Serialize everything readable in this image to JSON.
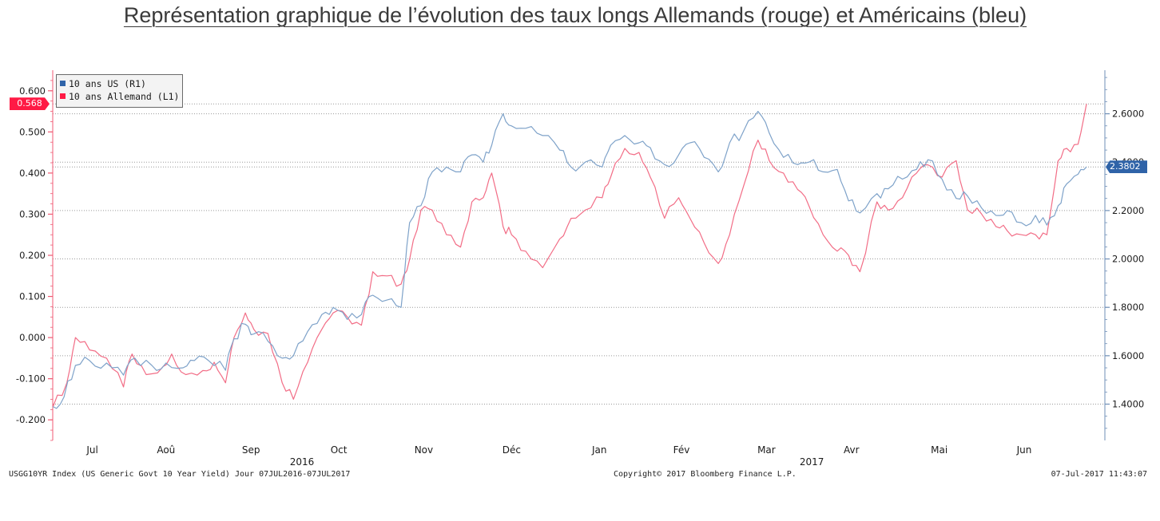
{
  "title": "Représentation graphique de l’évolution des taux longs Allemands (rouge) et Américains (bleu)",
  "colors": {
    "us": "#2f63a8",
    "de": "#ff1a45",
    "us_line": "#7ea2c9",
    "de_line": "#f26d86",
    "axis_left": "#f05a73",
    "axis_right": "#6f8fb7",
    "grid": "#9a9a9a"
  },
  "legend": {
    "us_label": "10 ans US (R1)",
    "de_label": "10 ans Allemand (L1)"
  },
  "badges": {
    "de_last": "0.568",
    "us_last": "2.3802"
  },
  "footer": {
    "left": "USGG10YR Index (US Generic Govt 10 Year Yield) Jour 07JUL2016-07JUL2017",
    "center": "Copyright© 2017 Bloomberg Finance L.P.",
    "right": "07-Jul-2017 11:43:07"
  },
  "chart_data": {
    "type": "line",
    "title": "Représentation graphique de l’évolution des taux longs Allemands (rouge) et Américains (bleu)",
    "x_start": "2016-07-07",
    "x_end": "2017-07-07",
    "x_months": [
      "Jul",
      "Aoû",
      "Sep",
      "Oct",
      "Nov",
      "Déc",
      "Jan",
      "Fév",
      "Mar",
      "Avr",
      "Mai",
      "Jun"
    ],
    "x_years": [
      "2016",
      "2017"
    ],
    "y_left": {
      "label": "10 ans Allemand (L1)",
      "range": [
        -0.25,
        0.65
      ],
      "ticks": [
        "0.600",
        "0.500",
        "0.400",
        "0.300",
        "0.200",
        "0.100",
        "0.000",
        "-0.100",
        "-0.200"
      ]
    },
    "y_right": {
      "label": "10 ans US (R1)",
      "range": [
        1.25,
        2.78
      ],
      "ticks": [
        "2.6000",
        "2.4000",
        "2.2000",
        "2.0000",
        "1.8000",
        "1.6000",
        "1.4000"
      ]
    },
    "grid": "horizontal dotted",
    "legend_position": "top-left",
    "series": [
      {
        "name": "10 ans Allemand (L1)",
        "axis": "left",
        "color": "#f26d86",
        "points": [
          [
            "2016-07-07",
            -0.17
          ],
          [
            "2016-07-12",
            -0.11
          ],
          [
            "2016-07-15",
            0.0
          ],
          [
            "2016-07-20",
            -0.03
          ],
          [
            "2016-07-26",
            -0.05
          ],
          [
            "2016-08-01",
            -0.12
          ],
          [
            "2016-08-04",
            -0.04
          ],
          [
            "2016-08-09",
            -0.09
          ],
          [
            "2016-08-15",
            -0.07
          ],
          [
            "2016-08-18",
            -0.04
          ],
          [
            "2016-08-23",
            -0.09
          ],
          [
            "2016-08-29",
            -0.08
          ],
          [
            "2016-09-02",
            -0.06
          ],
          [
            "2016-09-06",
            -0.11
          ],
          [
            "2016-09-09",
            0.0
          ],
          [
            "2016-09-13",
            0.06
          ],
          [
            "2016-09-16",
            0.02
          ],
          [
            "2016-09-21",
            0.01
          ],
          [
            "2016-09-26",
            -0.11
          ],
          [
            "2016-09-30",
            -0.15
          ],
          [
            "2016-10-05",
            -0.06
          ],
          [
            "2016-10-10",
            0.02
          ],
          [
            "2016-10-14",
            0.06
          ],
          [
            "2016-10-19",
            0.05
          ],
          [
            "2016-10-24",
            0.03
          ],
          [
            "2016-10-28",
            0.16
          ],
          [
            "2016-11-02",
            0.15
          ],
          [
            "2016-11-07",
            0.13
          ],
          [
            "2016-11-10",
            0.19
          ],
          [
            "2016-11-14",
            0.31
          ],
          [
            "2016-11-18",
            0.31
          ],
          [
            "2016-11-23",
            0.25
          ],
          [
            "2016-11-28",
            0.22
          ],
          [
            "2016-12-02",
            0.33
          ],
          [
            "2016-12-06",
            0.34
          ],
          [
            "2016-12-09",
            0.4
          ],
          [
            "2016-12-13",
            0.27
          ],
          [
            "2016-12-16",
            0.25
          ],
          [
            "2016-12-21",
            0.21
          ],
          [
            "2016-12-27",
            0.17
          ],
          [
            "2017-01-02",
            0.24
          ],
          [
            "2017-01-06",
            0.29
          ],
          [
            "2017-01-11",
            0.31
          ],
          [
            "2017-01-17",
            0.34
          ],
          [
            "2017-01-20",
            0.39
          ],
          [
            "2017-01-25",
            0.46
          ],
          [
            "2017-01-30",
            0.45
          ],
          [
            "2017-02-03",
            0.39
          ],
          [
            "2017-02-08",
            0.29
          ],
          [
            "2017-02-13",
            0.34
          ],
          [
            "2017-02-17",
            0.29
          ],
          [
            "2017-02-22",
            0.23
          ],
          [
            "2017-02-27",
            0.18
          ],
          [
            "2017-03-03",
            0.25
          ],
          [
            "2017-03-08",
            0.37
          ],
          [
            "2017-03-13",
            0.48
          ],
          [
            "2017-03-17",
            0.43
          ],
          [
            "2017-03-22",
            0.4
          ],
          [
            "2017-03-27",
            0.36
          ],
          [
            "2017-03-31",
            0.32
          ],
          [
            "2017-04-05",
            0.25
          ],
          [
            "2017-04-10",
            0.21
          ],
          [
            "2017-04-14",
            0.2
          ],
          [
            "2017-04-18",
            0.16
          ],
          [
            "2017-04-24",
            0.33
          ],
          [
            "2017-04-28",
            0.31
          ],
          [
            "2017-05-03",
            0.34
          ],
          [
            "2017-05-08",
            0.4
          ],
          [
            "2017-05-12",
            0.42
          ],
          [
            "2017-05-17",
            0.39
          ],
          [
            "2017-05-22",
            0.43
          ],
          [
            "2017-05-26",
            0.31
          ],
          [
            "2017-05-31",
            0.3
          ],
          [
            "2017-06-05",
            0.27
          ],
          [
            "2017-06-09",
            0.26
          ],
          [
            "2017-06-14",
            0.25
          ],
          [
            "2017-06-19",
            0.25
          ],
          [
            "2017-06-23",
            0.25
          ],
          [
            "2017-06-27",
            0.43
          ],
          [
            "2017-06-30",
            0.46
          ],
          [
            "2017-07-04",
            0.47
          ],
          [
            "2017-07-07",
            0.568
          ]
        ]
      },
      {
        "name": "10 ans US (R1)",
        "axis": "right",
        "color": "#7ea2c9",
        "points": [
          [
            "2016-07-07",
            1.39
          ],
          [
            "2016-07-11",
            1.43
          ],
          [
            "2016-07-15",
            1.56
          ],
          [
            "2016-07-20",
            1.58
          ],
          [
            "2016-07-26",
            1.57
          ],
          [
            "2016-08-01",
            1.52
          ],
          [
            "2016-08-05",
            1.59
          ],
          [
            "2016-08-11",
            1.56
          ],
          [
            "2016-08-16",
            1.57
          ],
          [
            "2016-08-22",
            1.55
          ],
          [
            "2016-08-26",
            1.58
          ],
          [
            "2016-08-31",
            1.58
          ],
          [
            "2016-09-06",
            1.54
          ],
          [
            "2016-09-09",
            1.67
          ],
          [
            "2016-09-13",
            1.73
          ],
          [
            "2016-09-16",
            1.69
          ],
          [
            "2016-09-21",
            1.66
          ],
          [
            "2016-09-26",
            1.59
          ],
          [
            "2016-09-30",
            1.6
          ],
          [
            "2016-10-05",
            1.7
          ],
          [
            "2016-10-10",
            1.77
          ],
          [
            "2016-10-14",
            1.8
          ],
          [
            "2016-10-19",
            1.75
          ],
          [
            "2016-10-24",
            1.77
          ],
          [
            "2016-10-28",
            1.85
          ],
          [
            "2016-11-02",
            1.83
          ],
          [
            "2016-11-07",
            1.8
          ],
          [
            "2016-11-10",
            2.15
          ],
          [
            "2016-11-14",
            2.22
          ],
          [
            "2016-11-18",
            2.36
          ],
          [
            "2016-11-23",
            2.38
          ],
          [
            "2016-11-28",
            2.36
          ],
          [
            "2016-12-02",
            2.43
          ],
          [
            "2016-12-06",
            2.4
          ],
          [
            "2016-12-09",
            2.47
          ],
          [
            "2016-12-13",
            2.6
          ],
          [
            "2016-12-16",
            2.55
          ],
          [
            "2016-12-21",
            2.54
          ],
          [
            "2016-12-27",
            2.51
          ],
          [
            "2017-01-02",
            2.45
          ],
          [
            "2017-01-06",
            2.38
          ],
          [
            "2017-01-11",
            2.4
          ],
          [
            "2017-01-17",
            2.38
          ],
          [
            "2017-01-20",
            2.47
          ],
          [
            "2017-01-25",
            2.51
          ],
          [
            "2017-01-30",
            2.48
          ],
          [
            "2017-02-03",
            2.46
          ],
          [
            "2017-02-08",
            2.39
          ],
          [
            "2017-02-13",
            2.43
          ],
          [
            "2017-02-17",
            2.48
          ],
          [
            "2017-02-22",
            2.42
          ],
          [
            "2017-02-27",
            2.36
          ],
          [
            "2017-03-03",
            2.48
          ],
          [
            "2017-03-08",
            2.53
          ],
          [
            "2017-03-13",
            2.61
          ],
          [
            "2017-03-17",
            2.52
          ],
          [
            "2017-03-22",
            2.42
          ],
          [
            "2017-03-27",
            2.39
          ],
          [
            "2017-03-31",
            2.4
          ],
          [
            "2017-04-05",
            2.36
          ],
          [
            "2017-04-10",
            2.37
          ],
          [
            "2017-04-14",
            2.24
          ],
          [
            "2017-04-18",
            2.19
          ],
          [
            "2017-04-24",
            2.27
          ],
          [
            "2017-04-28",
            2.29
          ],
          [
            "2017-05-03",
            2.33
          ],
          [
            "2017-05-08",
            2.37
          ],
          [
            "2017-05-12",
            2.41
          ],
          [
            "2017-05-17",
            2.33
          ],
          [
            "2017-05-22",
            2.25
          ],
          [
            "2017-05-26",
            2.26
          ],
          [
            "2017-05-31",
            2.21
          ],
          [
            "2017-06-05",
            2.18
          ],
          [
            "2017-06-09",
            2.2
          ],
          [
            "2017-06-14",
            2.15
          ],
          [
            "2017-06-19",
            2.18
          ],
          [
            "2017-06-23",
            2.14
          ],
          [
            "2017-06-27",
            2.22
          ],
          [
            "2017-06-30",
            2.31
          ],
          [
            "2017-07-04",
            2.35
          ],
          [
            "2017-07-07",
            2.3802
          ]
        ]
      }
    ]
  }
}
